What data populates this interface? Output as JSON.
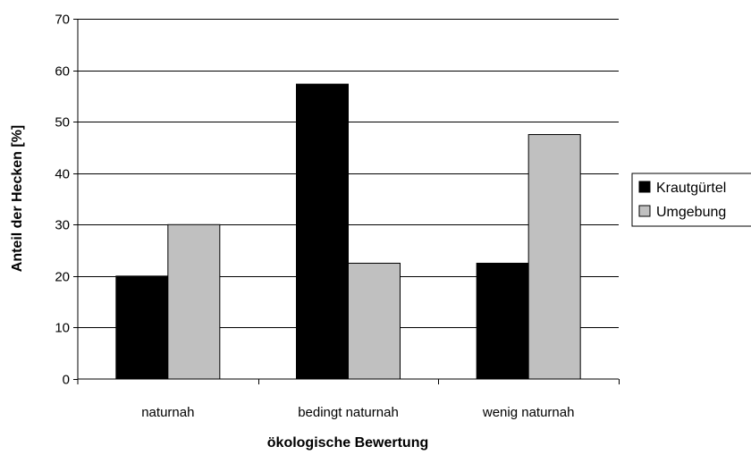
{
  "chart_data": {
    "type": "bar",
    "categories": [
      "naturnah",
      "bedingt naturnah",
      "wenig naturnah"
    ],
    "series": [
      {
        "name": "Krautgürtel",
        "color": "#000000",
        "values": [
          20,
          57.3,
          22.5
        ]
      },
      {
        "name": "Umgebung",
        "color": "#c0c0c0",
        "values": [
          30,
          22.5,
          47.5
        ]
      }
    ],
    "xlabel": "ökologische Bewertung",
    "ylabel": "Anteil der Hecken [%]",
    "ylim": [
      0,
      70
    ],
    "yticks": [
      0,
      10,
      20,
      30,
      40,
      50,
      60,
      70
    ],
    "grid": true,
    "legend_position": "right"
  }
}
